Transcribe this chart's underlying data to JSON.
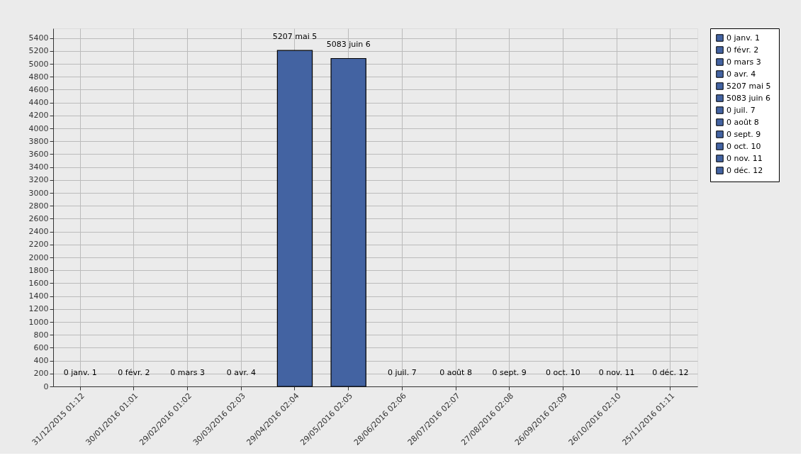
{
  "chart_data": {
    "type": "bar",
    "categories": [
      "31/12/2015 01:12",
      "30/01/2016 01:01",
      "29/02/2016 01:02",
      "30/03/2016 02:03",
      "29/04/2016 02:04",
      "29/05/2016 02:05",
      "28/06/2016 02:06",
      "28/07/2016 02:07",
      "27/08/2016 02:08",
      "26/09/2016 02:09",
      "26/10/2016 02:10",
      "25/11/2016 01:11"
    ],
    "series": [
      {
        "name": "0  janv. 1",
        "color": "#4363a2",
        "values": [
          0,
          null,
          null,
          null,
          null,
          null,
          null,
          null,
          null,
          null,
          null,
          null
        ],
        "value_labels": [
          "0  janv. 1",
          null,
          null,
          null,
          null,
          null,
          null,
          null,
          null,
          null,
          null,
          null
        ]
      },
      {
        "name": "0  févr. 2",
        "color": "#4363a2",
        "values": [
          null,
          0,
          null,
          null,
          null,
          null,
          null,
          null,
          null,
          null,
          null,
          null
        ],
        "value_labels": [
          null,
          "0  févr. 2",
          null,
          null,
          null,
          null,
          null,
          null,
          null,
          null,
          null,
          null
        ]
      },
      {
        "name": "0  mars 3",
        "color": "#4363a2",
        "values": [
          null,
          null,
          0,
          null,
          null,
          null,
          null,
          null,
          null,
          null,
          null,
          null
        ],
        "value_labels": [
          null,
          null,
          "0  mars 3",
          null,
          null,
          null,
          null,
          null,
          null,
          null,
          null,
          null
        ]
      },
      {
        "name": "0  avr. 4",
        "color": "#4363a2",
        "values": [
          null,
          null,
          null,
          0,
          null,
          null,
          null,
          null,
          null,
          null,
          null,
          null
        ],
        "value_labels": [
          null,
          null,
          null,
          "0  avr. 4",
          null,
          null,
          null,
          null,
          null,
          null,
          null,
          null
        ]
      },
      {
        "name": "5207  mai 5",
        "color": "#4363a2",
        "values": [
          null,
          null,
          null,
          null,
          5207,
          null,
          null,
          null,
          null,
          null,
          null,
          null
        ],
        "value_labels": [
          null,
          null,
          null,
          null,
          "5207  mai 5",
          null,
          null,
          null,
          null,
          null,
          null,
          null
        ]
      },
      {
        "name": "5083  juin 6",
        "color": "#4363a2",
        "values": [
          null,
          null,
          null,
          null,
          null,
          5083,
          null,
          null,
          null,
          null,
          null,
          null
        ],
        "value_labels": [
          null,
          null,
          null,
          null,
          null,
          "5083  juin 6",
          null,
          null,
          null,
          null,
          null,
          null
        ]
      },
      {
        "name": "0  juil. 7",
        "color": "#4363a2",
        "values": [
          null,
          null,
          null,
          null,
          null,
          null,
          0,
          null,
          null,
          null,
          null,
          null
        ],
        "value_labels": [
          null,
          null,
          null,
          null,
          null,
          null,
          "0  juil. 7",
          null,
          null,
          null,
          null,
          null
        ]
      },
      {
        "name": "0  août 8",
        "color": "#4363a2",
        "values": [
          null,
          null,
          null,
          null,
          null,
          null,
          null,
          0,
          null,
          null,
          null,
          null
        ],
        "value_labels": [
          null,
          null,
          null,
          null,
          null,
          null,
          null,
          "0  août 8",
          null,
          null,
          null,
          null
        ]
      },
      {
        "name": "0  sept. 9",
        "color": "#4363a2",
        "values": [
          null,
          null,
          null,
          null,
          null,
          null,
          null,
          null,
          0,
          null,
          null,
          null
        ],
        "value_labels": [
          null,
          null,
          null,
          null,
          null,
          null,
          null,
          null,
          "0  sept. 9",
          null,
          null,
          null
        ]
      },
      {
        "name": "0  oct. 10",
        "color": "#4363a2",
        "values": [
          null,
          null,
          null,
          null,
          null,
          null,
          null,
          null,
          null,
          0,
          null,
          null
        ],
        "value_labels": [
          null,
          null,
          null,
          null,
          null,
          null,
          null,
          null,
          null,
          "0  oct. 10",
          null,
          null
        ]
      },
      {
        "name": "0  nov. 11",
        "color": "#4363a2",
        "values": [
          null,
          null,
          null,
          null,
          null,
          null,
          null,
          null,
          null,
          null,
          0,
          null
        ],
        "value_labels": [
          null,
          null,
          null,
          null,
          null,
          null,
          null,
          null,
          null,
          null,
          "0  nov. 11",
          null
        ]
      },
      {
        "name": "0  déc. 12",
        "color": "#4363a2",
        "values": [
          null,
          null,
          null,
          null,
          null,
          null,
          null,
          null,
          null,
          null,
          null,
          0
        ],
        "value_labels": [
          null,
          null,
          null,
          null,
          null,
          null,
          null,
          null,
          null,
          null,
          null,
          "0  déc. 12"
        ]
      }
    ],
    "ylim": [
      0,
      5550
    ],
    "yticks": [
      0,
      200,
      400,
      600,
      800,
      1000,
      1200,
      1400,
      1600,
      1800,
      2000,
      2200,
      2400,
      2600,
      2800,
      3000,
      3200,
      3400,
      3600,
      3800,
      4000,
      4200,
      4400,
      4600,
      4800,
      5000,
      5200,
      5400
    ],
    "grid": true,
    "legend": "right"
  }
}
